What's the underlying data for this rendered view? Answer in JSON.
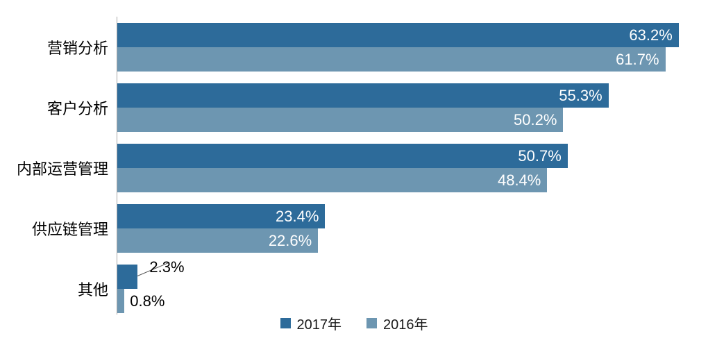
{
  "chart_data": {
    "type": "bar",
    "orientation": "horizontal",
    "title": "",
    "categories": [
      "营销分析",
      "客户分析",
      "内部运营管理",
      "供应链管理",
      "其他"
    ],
    "series": [
      {
        "name": "2017年",
        "color": "#2d6b9a",
        "values": [
          63.2,
          55.3,
          50.7,
          23.4,
          2.3
        ]
      },
      {
        "name": "2016年",
        "color": "#6d96b1",
        "values": [
          61.7,
          50.2,
          48.4,
          22.6,
          0.8
        ]
      }
    ],
    "value_suffix": "%",
    "xlim": [
      0,
      66.5
    ],
    "grid": false,
    "legend_position": "bottom",
    "axis_color": "#a6a6a6",
    "inside_label_color": "#ffffff",
    "outside_label_color": "#000000",
    "outside_label_threshold": 5,
    "leader_line_color": "#595959"
  }
}
